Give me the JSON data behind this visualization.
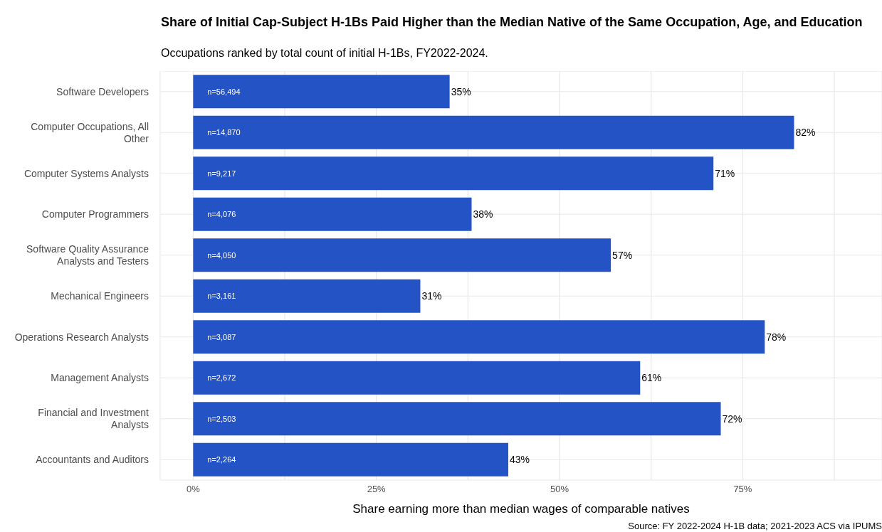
{
  "chart_data": {
    "type": "bar",
    "orientation": "horizontal",
    "title": "Share of Initial Cap-Subject H-1Bs Paid Higher than the Median Native of the Same Occupation, Age, and Education",
    "subtitle": "Occupations ranked by total count of initial H-1Bs, FY2022-2024.",
    "xlabel": "Share earning more than median wages of comparable natives",
    "categories": [
      "Software Developers",
      "Computer Occupations, All Other",
      "Computer Systems Analysts",
      "Computer Programmers",
      "Software Quality Assurance Analysts and Testers",
      "Mechanical Engineers",
      "Operations Research Analysts",
      "Management Analysts",
      "Financial and Investment Analysts",
      "Accountants and Auditors"
    ],
    "values": [
      35,
      82,
      71,
      38,
      57,
      31,
      78,
      61,
      72,
      43
    ],
    "value_labels": [
      "35%",
      "82%",
      "71%",
      "38%",
      "57%",
      "31%",
      "78%",
      "61%",
      "72%",
      "43%"
    ],
    "color": "#2453c5",
    "xlim": [
      -4.5,
      94
    ],
    "xticks": [
      {
        "value": 0,
        "label": "0%"
      },
      {
        "value": 12.5,
        "label": null
      },
      {
        "value": 25,
        "label": "25%"
      },
      {
        "value": 37.5,
        "label": null
      },
      {
        "value": 50,
        "label": "50%"
      },
      {
        "value": 62.5,
        "label": null
      },
      {
        "value": 75,
        "label": "75%"
      },
      {
        "value": 87.5,
        "label": null
      }
    ],
    "grid": true,
    "annotations": [
      {
        "text": "n=56,494",
        "y": "Software Developers"
      },
      {
        "text": "n=14,870",
        "y": "Computer Occupations, All Other"
      },
      {
        "text": "n=9,217",
        "y": "Computer Systems Analysts"
      },
      {
        "text": "n=4,076",
        "y": "Computer Programmers"
      },
      {
        "text": "n=4,050",
        "y": "Software Quality Assurance Analysts and Testers"
      },
      {
        "text": "n=3,161",
        "y": "Mechanical Engineers"
      },
      {
        "text": "n=3,087",
        "y": "Operations Research Analysts"
      },
      {
        "text": "n=2,672",
        "y": "Management Analysts"
      },
      {
        "text": "n=2,503",
        "y": "Financial and Investment Analysts"
      },
      {
        "text": "n=2,264",
        "y": "Accountants and Auditors"
      },
      "Source: FY 2022-2024 H-1B data; 2021-2023 ACS via IPUMS"
    ]
  }
}
